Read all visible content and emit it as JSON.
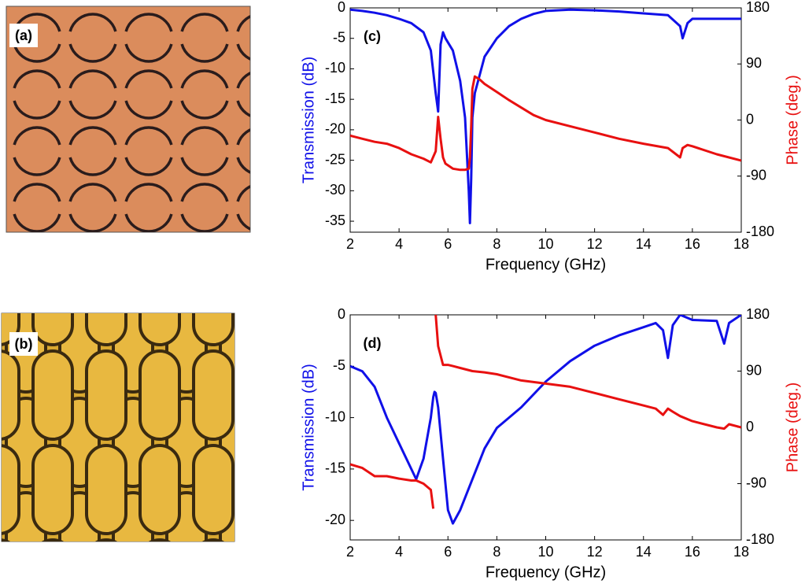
{
  "panels": [
    {
      "label": "(a)"
    },
    {
      "label": "(b)"
    }
  ],
  "chart_data": [
    {
      "type": "line",
      "annotation": "(c)",
      "xlabel": "Frequency (GHz)",
      "ylabel": "Transmission (dB)",
      "y2label": "Phase (deg.)",
      "xlim": [
        2,
        18
      ],
      "xticks": [
        2,
        4,
        6,
        8,
        10,
        12,
        14,
        16,
        18
      ],
      "ylim": [
        -36.8,
        0
      ],
      "yticks": [
        0,
        -5,
        -10,
        -15,
        -20,
        -25,
        -30,
        -35
      ],
      "y2lim": [
        -180,
        180
      ],
      "y2ticks": [
        180,
        90,
        0,
        -90,
        -180
      ],
      "x": [
        2,
        2.5,
        3,
        3.5,
        4,
        4.5,
        5,
        5.3,
        5.5,
        5.6,
        5.7,
        5.8,
        5.9,
        6.2,
        6.5,
        6.7,
        6.85,
        6.9,
        6.95,
        7.0,
        7.1,
        7.3,
        7.5,
        8,
        8.5,
        9,
        9.5,
        10,
        11,
        12,
        13,
        14,
        15,
        15.5,
        15.6,
        15.8,
        16,
        17,
        18
      ],
      "series": [
        {
          "color": "#1010e8",
          "axis": "y",
          "values": [
            -0.3,
            -0.5,
            -0.8,
            -1.2,
            -1.8,
            -2.5,
            -4,
            -7,
            -14,
            -17,
            -6,
            -4,
            -5,
            -7,
            -12,
            -18,
            -30,
            -35.3,
            -28,
            -18,
            -14,
            -11,
            -8,
            -5,
            -3,
            -1.8,
            -1,
            -0.5,
            -0.3,
            -0.4,
            -0.6,
            -0.9,
            -1.2,
            -3,
            -5,
            -2.5,
            -1.8,
            -1.8,
            -1.8
          ]
        },
        {
          "color": "#e81010",
          "axis": "y2",
          "values": [
            -25,
            -30,
            -35,
            -38,
            -45,
            -55,
            -62,
            -68,
            -50,
            5,
            -30,
            -60,
            -70,
            -78,
            -80,
            -80,
            -78,
            -60,
            -10,
            50,
            70,
            65,
            58,
            45,
            32,
            20,
            8,
            0,
            -10,
            -20,
            -30,
            -38,
            -45,
            -60,
            -45,
            -40,
            -42,
            -55,
            -65
          ]
        }
      ]
    },
    {
      "type": "line",
      "annotation": "(d)",
      "xlabel": "Frequency (GHz)",
      "ylabel": "Transmission (dB)",
      "y2label": "Phase (deg.)",
      "xlim": [
        2,
        18
      ],
      "xticks": [
        2,
        4,
        6,
        8,
        10,
        12,
        14,
        16,
        18
      ],
      "ylim": [
        -21.9,
        0
      ],
      "yticks": [
        0,
        -5,
        -10,
        -15,
        -20
      ],
      "y2lim": [
        -180,
        180
      ],
      "y2ticks": [
        180,
        90,
        0,
        -90,
        -180
      ],
      "x": [
        2,
        2.5,
        3,
        3.5,
        4,
        4.5,
        4.7,
        5,
        5.3,
        5.4,
        5.45,
        5.5,
        5.6,
        5.8,
        6,
        6.2,
        6.5,
        7,
        7.5,
        8,
        9,
        10,
        11,
        12,
        13,
        14,
        14.5,
        14.8,
        15,
        15.2,
        15.5,
        16,
        17,
        17.3,
        17.5,
        18
      ],
      "series": [
        {
          "color": "#1010e8",
          "axis": "y",
          "values": [
            -5,
            -5.5,
            -7,
            -10,
            -12.5,
            -15,
            -16,
            -14,
            -10,
            -8,
            -7.5,
            -7.6,
            -9,
            -14,
            -19,
            -20.3,
            -19,
            -16,
            -13,
            -11,
            -9,
            -6.5,
            -4.5,
            -3,
            -2,
            -1.2,
            -0.8,
            -1.5,
            -4.2,
            -1,
            0,
            -0.5,
            -0.6,
            -2.8,
            -0.8,
            0
          ]
        },
        {
          "color": "#e81010",
          "axis": "y2",
          "values": [
            -59,
            -65,
            -78,
            -78,
            -82,
            -85,
            -85,
            -90,
            -100,
            -130,
            null,
            180,
            130,
            100,
            100,
            98,
            95,
            90,
            88,
            85,
            75,
            70,
            65,
            55,
            45,
            35,
            30,
            20,
            30,
            25,
            18,
            10,
            0,
            -2,
            5,
            0
          ]
        }
      ]
    }
  ]
}
